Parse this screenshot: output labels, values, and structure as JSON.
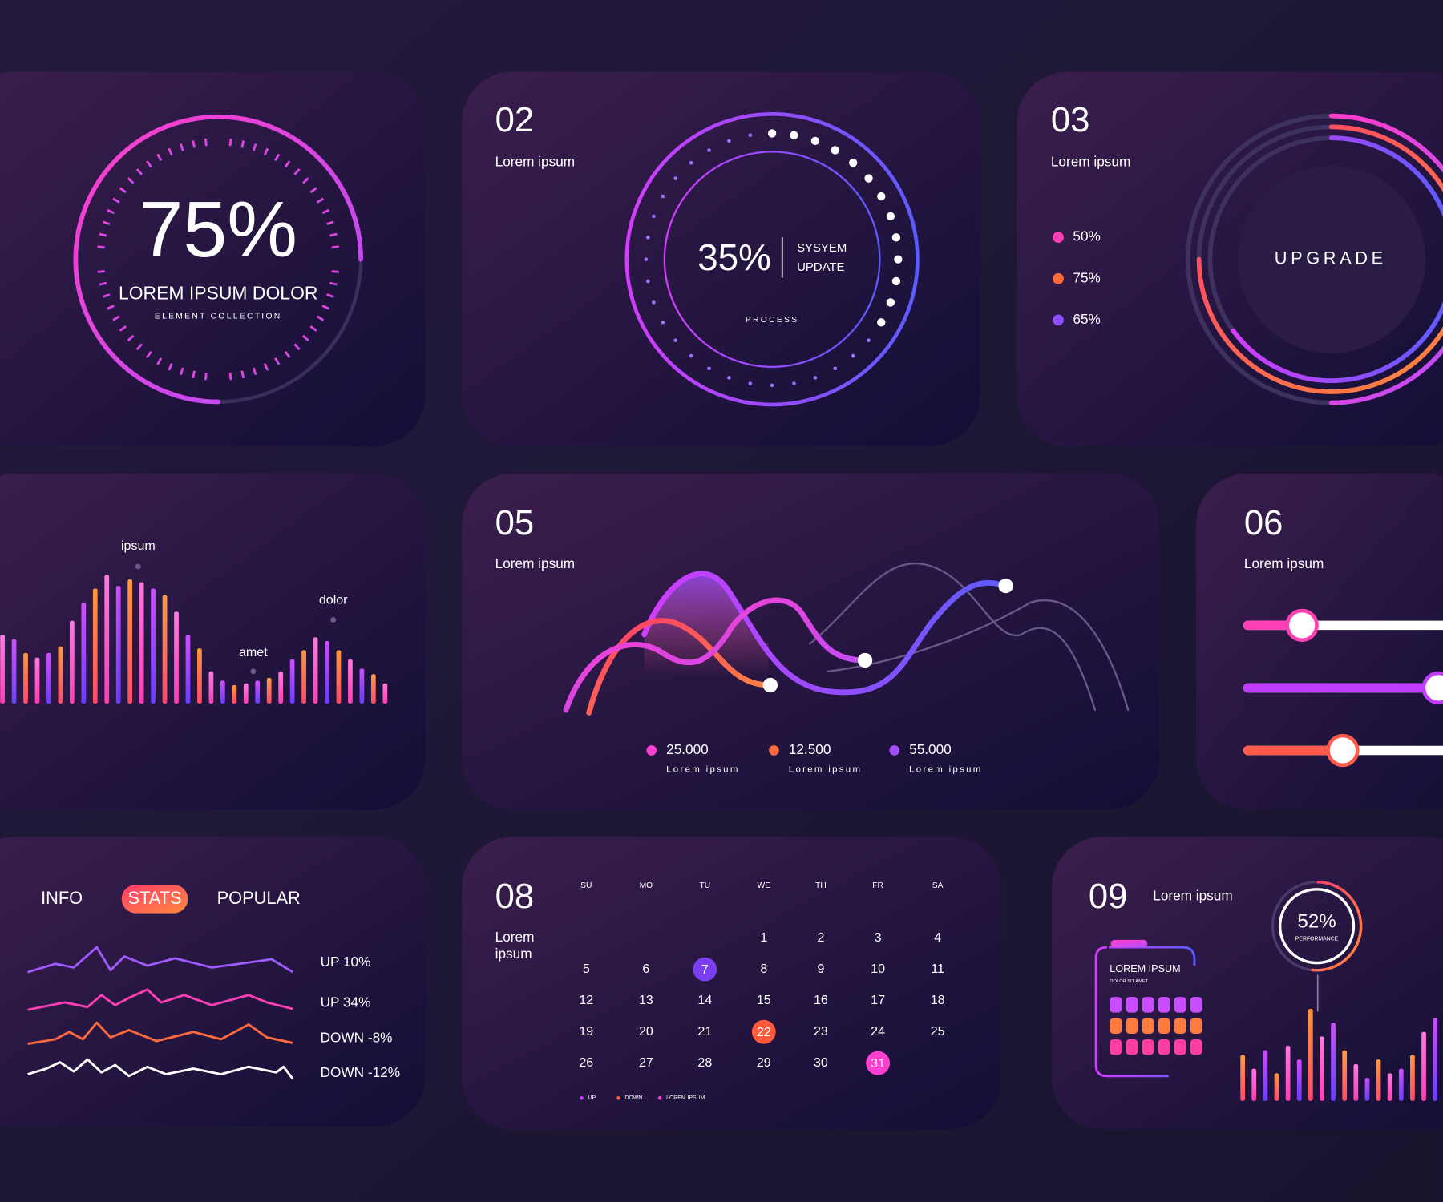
{
  "panel1": {
    "value": 75,
    "value_label": "75%",
    "title": "LOREM IPSUM DOLOR",
    "subtitle": "ELEMENT COLLECTION"
  },
  "panel2": {
    "number": "02",
    "label": "Lorem ipsum",
    "value": 35,
    "value_label": "35%",
    "status_line1": "SYSYEM",
    "status_line2": "UPDATE",
    "caption": "PROCESS"
  },
  "panel3": {
    "number": "03",
    "label": "Lorem ipsum",
    "legend": [
      {
        "label": "50%",
        "value": 50,
        "color": "#ff3fb4"
      },
      {
        "label": "75%",
        "value": 75,
        "color": "#ff6a3d"
      },
      {
        "label": "65%",
        "value": 65,
        "color": "#8c4dff"
      }
    ],
    "button": "UPGRADE"
  },
  "panel4": {
    "bars": [
      75,
      70,
      55,
      50,
      55,
      62,
      90,
      110,
      125,
      140,
      128,
      135,
      132,
      125,
      118,
      100,
      75,
      60,
      35,
      25,
      20,
      22,
      25,
      28,
      35,
      48,
      58,
      72,
      68,
      58,
      48,
      38,
      32,
      22
    ],
    "annotations": [
      "ipsum",
      "amet",
      "dolor"
    ]
  },
  "panel5": {
    "number": "05",
    "label": "Lorem ipsum",
    "legend": [
      {
        "value": "25.000",
        "caption": "Lorem ipsum",
        "color": "#ff3fcf"
      },
      {
        "value": "12.500",
        "caption": "Lorem ipsum",
        "color": "#ff6a3d"
      },
      {
        "value": "55.000",
        "caption": "Lorem ipsum",
        "color": "#a24dff"
      }
    ]
  },
  "panel6": {
    "number": "06",
    "label": "Lorem ipsum",
    "sliders": [
      {
        "value": 25,
        "color": "#ff3fb4"
      },
      {
        "value": 82,
        "color": "#c03cff"
      },
      {
        "value": 42,
        "color": "#ff5a4a"
      }
    ]
  },
  "panel7": {
    "tabs": [
      "INFO",
      "STATS",
      "POPULAR"
    ],
    "series": [
      {
        "label": "UP 10%",
        "color": "#a05bff"
      },
      {
        "label": "UP 34%",
        "color": "#ff3fb4"
      },
      {
        "label": "DOWN -8%",
        "color": "#ff6a3d"
      },
      {
        "label": "DOWN -12%",
        "color": "#ffffff"
      }
    ]
  },
  "panel8": {
    "number": "08",
    "label_line1": "Lorem",
    "label_line2": "ipsum",
    "weekdays": [
      "SU",
      "MO",
      "TU",
      "WE",
      "TH",
      "FR",
      "SA"
    ],
    "weeks": [
      [
        null,
        null,
        null,
        1,
        2,
        3,
        4
      ],
      [
        5,
        6,
        {
          "label": 7,
          "color": "#7b3ff2"
        },
        8,
        9,
        10,
        11
      ],
      [
        12,
        13,
        14,
        15,
        16,
        17,
        18
      ],
      [
        19,
        20,
        21,
        {
          "label": 22,
          "color": "#ff5a3a"
        },
        23,
        24,
        25
      ],
      [
        26,
        27,
        28,
        29,
        30,
        {
          "label": 31,
          "color": "#ff3fcf"
        },
        null
      ]
    ],
    "legend": [
      {
        "label": "UP",
        "color": "#c03cff"
      },
      {
        "label": "DOWN",
        "color": "#ff5a4a"
      },
      {
        "label": "LOREM IPSUM",
        "color": "#ff3fcf"
      }
    ]
  },
  "panel9": {
    "number": "09",
    "label": "Lorem ipsum",
    "gauge_value": 52,
    "gauge_label": "52%",
    "gauge_caption": "PERFORMANCE",
    "card_title": "LOREM IPSUM",
    "card_subtitle": "DOLOR SIT AMET",
    "bars": [
      50,
      35,
      55,
      30,
      60,
      45,
      100,
      70,
      85,
      55,
      40,
      25,
      45,
      30,
      35,
      50,
      75,
      90
    ]
  }
}
